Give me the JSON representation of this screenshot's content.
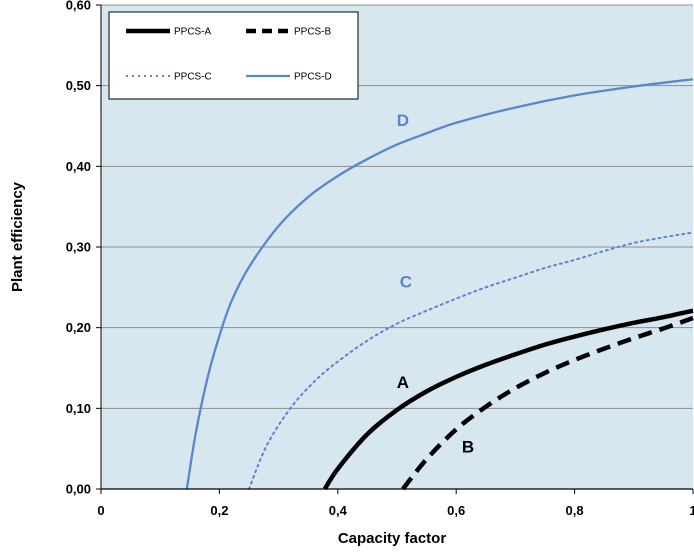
{
  "colors": {
    "plot_bg": "#d7e7f0",
    "grid": "#8c8c8c",
    "black": "#000000",
    "blue": "#5b86cc"
  },
  "chart_data": {
    "type": "line",
    "xlabel": "Capacity factor",
    "ylabel": "Plant efficiency",
    "xlim": [
      0,
      1
    ],
    "ylim": [
      0,
      0.6
    ],
    "x_ticks": [
      "0",
      "0,2",
      "0,4",
      "0,6",
      "0,8",
      "1"
    ],
    "y_ticks": [
      "0,00",
      "0,10",
      "0,20",
      "0,30",
      "0,40",
      "0,50",
      "0,60"
    ],
    "grid": "horizontal",
    "legend_position": "top-left",
    "series": [
      {
        "name": "PPCS-A",
        "label": "A",
        "style": "solid-thick",
        "color": "#000000",
        "points": [
          [
            0.378,
            0.0
          ],
          [
            0.4,
            0.025
          ],
          [
            0.45,
            0.068
          ],
          [
            0.5,
            0.098
          ],
          [
            0.55,
            0.121
          ],
          [
            0.6,
            0.139
          ],
          [
            0.65,
            0.154
          ],
          [
            0.7,
            0.167
          ],
          [
            0.75,
            0.179
          ],
          [
            0.8,
            0.189
          ],
          [
            0.85,
            0.198
          ],
          [
            0.9,
            0.206
          ],
          [
            0.95,
            0.213
          ],
          [
            1.0,
            0.221
          ]
        ]
      },
      {
        "name": "PPCS-B",
        "label": "B",
        "style": "dashed-thick",
        "color": "#000000",
        "points": [
          [
            0.51,
            0.0
          ],
          [
            0.55,
            0.037
          ],
          [
            0.6,
            0.074
          ],
          [
            0.65,
            0.102
          ],
          [
            0.7,
            0.125
          ],
          [
            0.75,
            0.144
          ],
          [
            0.8,
            0.16
          ],
          [
            0.85,
            0.174
          ],
          [
            0.9,
            0.187
          ],
          [
            0.95,
            0.199
          ],
          [
            1.0,
            0.212
          ]
        ]
      },
      {
        "name": "PPCS-C",
        "label": "C",
        "style": "dotted",
        "color": "#5b86cc",
        "points": [
          [
            0.25,
            0.0
          ],
          [
            0.28,
            0.054
          ],
          [
            0.32,
            0.1
          ],
          [
            0.36,
            0.133
          ],
          [
            0.4,
            0.158
          ],
          [
            0.45,
            0.184
          ],
          [
            0.5,
            0.205
          ],
          [
            0.55,
            0.221
          ],
          [
            0.6,
            0.236
          ],
          [
            0.65,
            0.25
          ],
          [
            0.7,
            0.262
          ],
          [
            0.75,
            0.274
          ],
          [
            0.8,
            0.284
          ],
          [
            0.85,
            0.295
          ],
          [
            0.9,
            0.305
          ],
          [
            0.95,
            0.312
          ],
          [
            1.0,
            0.318
          ]
        ]
      },
      {
        "name": "PPCS-D",
        "label": "D",
        "style": "solid-thin",
        "color": "#5b86cc",
        "points": [
          [
            0.145,
            0.0
          ],
          [
            0.16,
            0.069
          ],
          [
            0.18,
            0.138
          ],
          [
            0.2,
            0.19
          ],
          [
            0.22,
            0.232
          ],
          [
            0.25,
            0.275
          ],
          [
            0.3,
            0.326
          ],
          [
            0.35,
            0.362
          ],
          [
            0.4,
            0.388
          ],
          [
            0.45,
            0.409
          ],
          [
            0.5,
            0.427
          ],
          [
            0.55,
            0.441
          ],
          [
            0.6,
            0.454
          ],
          [
            0.7,
            0.473
          ],
          [
            0.8,
            0.488
          ],
          [
            0.9,
            0.499
          ],
          [
            1.0,
            0.508
          ]
        ]
      }
    ],
    "annotations": [
      {
        "text": "A",
        "x": 0.51,
        "y": 0.125,
        "color": "#000000"
      },
      {
        "text": "B",
        "x": 0.62,
        "y": 0.045,
        "color": "#000000"
      },
      {
        "text": "C",
        "x": 0.515,
        "y": 0.25,
        "color": "#5b86cc"
      },
      {
        "text": "D",
        "x": 0.51,
        "y": 0.45,
        "color": "#5b86cc"
      }
    ]
  }
}
